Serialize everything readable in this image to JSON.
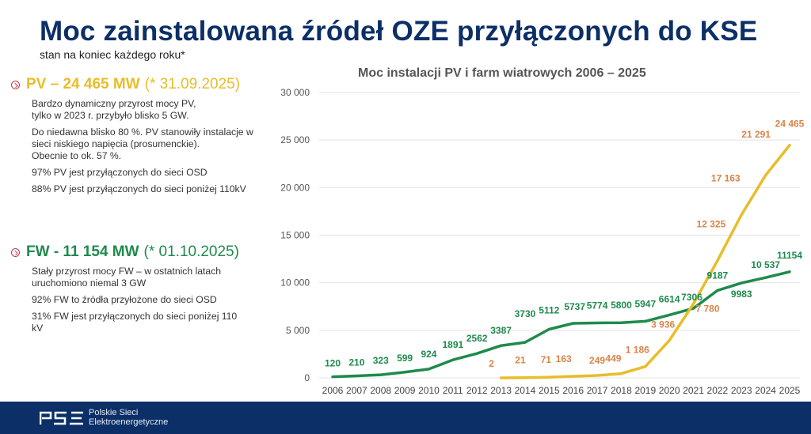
{
  "header": {
    "title": "Moc zainstalowana źródeł OZE przyłączonych do KSE",
    "subtitle": "stan na koniec każdego roku*"
  },
  "pv_section": {
    "heading_bold": "PV – 24 465 MW",
    "heading_date": "(* 31.09.2025)",
    "paragraphs": [
      "Bardzo dynamiczny przyrost mocy PV,\ntylko w 2023 r. przybyło blisko 5 GW.",
      "Do niedawna blisko 80 %. PV stanowiły instalacje w sieci niskiego napięcia (prosumenckie).\nObecnie to ok. 57 %.",
      "97% PV jest przyłączonych do sieci OSD",
      "88% PV jest przyłączonych do sieci poniżej 110kV"
    ]
  },
  "fw_section": {
    "heading_bold": "FW - 11 154 MW",
    "heading_date": "(* 01.10.2025)",
    "paragraphs": [
      "Stały przyrost mocy FW – w ostatnich latach uruchomiono niemal 3 GW",
      "92% FW to źródła przyłożone do sieci OSD",
      "31% FW jest przyłączonych do sieci poniżej 110 kV"
    ]
  },
  "footer": {
    "logo": "PSE",
    "company_line1": "Polskie Sieci",
    "company_line2": "Elektroenergetyczne"
  },
  "colors": {
    "title": "#0b2f66",
    "pv": "#e8bd2a",
    "pv_label": "#d9844a",
    "fw": "#1f8a4c",
    "footer_bg": "#0b2f66"
  },
  "chart_data": {
    "type": "line",
    "title": "Moc instalacji PV i farm wiatrowych 2006 – 2025",
    "xlabel": "",
    "ylabel": "",
    "ylim": [
      0,
      30000
    ],
    "yticks": [
      0,
      5000,
      10000,
      15000,
      20000,
      25000,
      30000
    ],
    "ytick_labels": [
      "0",
      "5 000",
      "10 000",
      "15 000",
      "20 000",
      "25 000",
      "30 000"
    ],
    "grid": true,
    "legend": "none",
    "categories": [
      "2006",
      "2007",
      "2008",
      "2009",
      "2010",
      "2011",
      "2012",
      "2013",
      "2014",
      "2015",
      "2016",
      "2017",
      "2018",
      "2019",
      "2020",
      "2021",
      "2022",
      "2023",
      "2024",
      "2025"
    ],
    "series": [
      {
        "name": "FW",
        "color": "#1f8a4c",
        "values": [
          120,
          210,
          323,
          599,
          924,
          1891,
          2562,
          3387,
          3730,
          5112,
          5737,
          5774,
          5800,
          5947,
          6614,
          7306,
          9187,
          9983,
          10537,
          11154
        ],
        "labels": [
          "120",
          "210",
          "323",
          "599",
          "924",
          "1891",
          "2562",
          "3387",
          "3730",
          "5112",
          "5737",
          "5774",
          "5800",
          "5947",
          "6614",
          "7306",
          "9187",
          "9983",
          "10 537",
          "11154"
        ]
      },
      {
        "name": "PV",
        "color": "#e8bd2a",
        "values": [
          null,
          null,
          null,
          null,
          null,
          null,
          null,
          2,
          21,
          71,
          163,
          249,
          449,
          1186,
          3936,
          7780,
          12325,
          17163,
          21291,
          24465
        ],
        "labels": [
          "",
          "",
          "",
          "",
          "",
          "",
          "",
          "2",
          "21",
          "71",
          "163",
          "249",
          "449",
          "1 186",
          "3 936",
          "7 780",
          "12 325",
          "17 163",
          "21 291",
          "24 465"
        ]
      }
    ]
  }
}
